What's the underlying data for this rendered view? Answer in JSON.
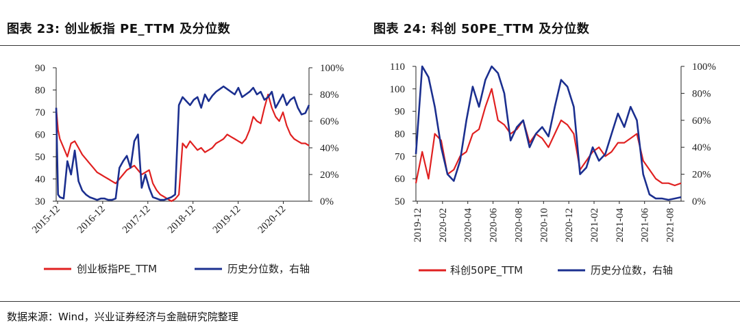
{
  "page": {
    "title_left": "图表 23:  创业板指 PE_TTM 及分位数",
    "title_right": "图表 24:  科创 50PE_TTM 及分位数",
    "source": "数据来源：Wind，兴业证券经济与金融研究院整理"
  },
  "colors": {
    "pe": "#e02020",
    "pct": "#1b2f8f",
    "axis": "#222222"
  },
  "chart_data": [
    {
      "type": "line",
      "title": "创业板指 PE_TTM 及分位数",
      "x_ticks": [
        "2015-12",
        "2016-12",
        "2017-12",
        "2018-12",
        "2019-12",
        "2020-12"
      ],
      "x_range": [
        0,
        68
      ],
      "y_left": {
        "range": [
          30,
          90
        ],
        "ticks": [
          "90",
          "80",
          "70",
          "60",
          "50",
          "40",
          "30"
        ]
      },
      "y_right": {
        "range": [
          0,
          100
        ],
        "ticks": [
          "100%",
          "80%",
          "60%",
          "40%",
          "20%",
          "0%"
        ]
      },
      "legend": "bottom",
      "series": [
        {
          "name": "创业板指PE_TTM",
          "axis": "left",
          "color": "#e02020",
          "x": [
            0,
            0.5,
            1,
            2,
            3,
            4,
            5,
            6,
            7,
            8,
            9,
            10,
            11,
            12,
            13,
            14,
            15,
            16,
            17,
            18,
            19,
            20,
            21,
            22,
            23,
            24,
            25,
            26,
            27,
            28,
            29,
            30,
            31,
            32,
            33,
            34,
            35,
            36,
            37,
            38,
            39,
            40,
            41,
            42,
            43,
            44,
            45,
            46,
            47,
            48,
            49,
            50,
            51,
            52,
            53,
            54,
            55,
            56,
            57,
            58,
            59,
            60,
            61,
            62,
            63,
            64,
            65,
            66,
            67,
            68
          ],
          "values": [
            72,
            62,
            58,
            54,
            50,
            56,
            57,
            54,
            51,
            49,
            47,
            45,
            43,
            42,
            41,
            40,
            39,
            38,
            40,
            42,
            44,
            45,
            46,
            44,
            42,
            43,
            44,
            38,
            35,
            33,
            32,
            31,
            30,
            31,
            33,
            56,
            54,
            57,
            55,
            53,
            54,
            52,
            53,
            54,
            56,
            57,
            58,
            60,
            59,
            58,
            57,
            56,
            58,
            62,
            68,
            66,
            65,
            72,
            78,
            72,
            68,
            66,
            70,
            64,
            60,
            58,
            57,
            56,
            56,
            55
          ]
        },
        {
          "name": "历史分位数，右轴",
          "axis": "right",
          "color": "#1b2f8f",
          "x": [
            0,
            0.5,
            1,
            2,
            3,
            4,
            5,
            6,
            7,
            8,
            9,
            10,
            11,
            12,
            13,
            14,
            15,
            16,
            17,
            18,
            19,
            20,
            21,
            22,
            23,
            24,
            25,
            26,
            27,
            28,
            29,
            30,
            31,
            32,
            33,
            34,
            35,
            36,
            37,
            38,
            39,
            40,
            41,
            42,
            43,
            44,
            45,
            46,
            47,
            48,
            49,
            50,
            51,
            52,
            53,
            54,
            55,
            56,
            57,
            58,
            59,
            60,
            61,
            62,
            63,
            64,
            65,
            66,
            67,
            68
          ],
          "values": [
            70,
            5,
            3,
            2,
            30,
            20,
            38,
            15,
            8,
            5,
            3,
            2,
            1,
            2,
            2,
            1,
            1,
            2,
            25,
            30,
            34,
            25,
            45,
            50,
            10,
            20,
            10,
            3,
            2,
            1,
            1,
            2,
            3,
            5,
            72,
            78,
            75,
            72,
            76,
            78,
            70,
            80,
            75,
            79,
            82,
            84,
            86,
            84,
            82,
            80,
            85,
            78,
            80,
            82,
            85,
            80,
            82,
            76,
            78,
            82,
            70,
            75,
            80,
            72,
            76,
            78,
            70,
            65,
            66,
            72
          ]
        }
      ]
    },
    {
      "type": "line",
      "title": "科创 50PE_TTM 及分位数",
      "x_ticks": [
        "2019-12",
        "2020-02",
        "2020-04",
        "2020-06",
        "2020-08",
        "2020-10",
        "2020-12",
        "2021-02",
        "2021-04",
        "2021-06",
        "2021-08"
      ],
      "x_range": [
        0,
        21
      ],
      "y_left": {
        "range": [
          50,
          110
        ],
        "ticks": [
          "110",
          "100",
          "90",
          "80",
          "70",
          "60",
          "50"
        ]
      },
      "y_right": {
        "range": [
          0,
          100
        ],
        "ticks": [
          "100%",
          "80%",
          "60%",
          "40%",
          "20%",
          "0%"
        ]
      },
      "legend": "bottom",
      "series": [
        {
          "name": "科创50PE_TTM",
          "axis": "left",
          "color": "#e02020",
          "x": [
            0,
            0.5,
            1,
            1.5,
            2,
            2.5,
            3,
            3.5,
            4,
            4.5,
            5,
            5.5,
            6,
            6.5,
            7,
            7.5,
            8,
            8.5,
            9,
            9.5,
            10,
            10.5,
            11,
            11.5,
            12,
            12.5,
            13,
            13.5,
            14,
            14.5,
            15,
            15.5,
            16,
            16.5,
            17,
            17.5,
            18,
            18.5,
            19,
            19.5,
            20,
            20.5,
            21
          ],
          "values": [
            58,
            72,
            60,
            80,
            77,
            62,
            64,
            70,
            72,
            80,
            82,
            92,
            100,
            86,
            84,
            80,
            82,
            86,
            76,
            80,
            78,
            74,
            80,
            86,
            84,
            80,
            64,
            68,
            72,
            74,
            70,
            72,
            76,
            76,
            78,
            80,
            68,
            64,
            60,
            58,
            58,
            57,
            58
          ]
        },
        {
          "name": "历史分位数，右轴",
          "axis": "right",
          "color": "#1b2f8f",
          "x": [
            0,
            0.5,
            1,
            1.5,
            2,
            2.5,
            3,
            3.5,
            4,
            4.5,
            5,
            5.5,
            6,
            6.5,
            7,
            7.5,
            8,
            8.5,
            9,
            9.5,
            10,
            10.5,
            11,
            11.5,
            12,
            12.5,
            13,
            13.5,
            14,
            14.5,
            15,
            15.5,
            16,
            16.5,
            17,
            17.5,
            18,
            18.5,
            19,
            19.5,
            20,
            20.5,
            21
          ],
          "values": [
            35,
            100,
            92,
            70,
            40,
            20,
            15,
            30,
            60,
            85,
            70,
            90,
            100,
            95,
            80,
            45,
            55,
            60,
            40,
            50,
            55,
            48,
            70,
            90,
            85,
            70,
            20,
            25,
            40,
            30,
            35,
            50,
            65,
            55,
            70,
            60,
            20,
            5,
            2,
            2,
            1,
            2,
            3
          ]
        }
      ]
    }
  ]
}
